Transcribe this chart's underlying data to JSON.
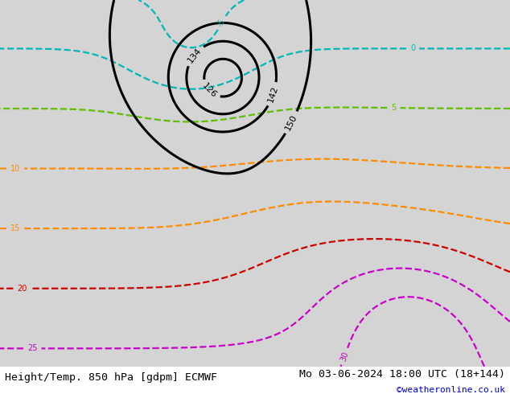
{
  "title_left": "Height/Temp. 850 hPa [gdpm] ECMWF",
  "title_right": "Mo 03-06-2024 18:00 UTC (18+144)",
  "copyright": "©weatheronline.co.uk",
  "figsize": [
    6.34,
    4.9
  ],
  "dpi": 100,
  "font_size_title": 9.5,
  "font_size_copyright": 8,
  "title_color": "black",
  "copyright_color": "#0000cc",
  "bg_color": "#d8d8d8",
  "land_green": "#c8e8a0",
  "land_gray": "#b8b8b8",
  "border_color": "#909090",
  "geo_color": "black",
  "geo_lw": 2.2,
  "temp_orange_color": "#ff8c00",
  "temp_orange_lw": 1.6,
  "temp_red_color": "#cc0000",
  "temp_red_lw": 1.6,
  "temp_magenta_color": "#cc00cc",
  "temp_magenta_lw": 1.6,
  "temp_cyan_color": "#00b8b8",
  "temp_cyan_lw": 1.6,
  "temp_green_color": "#60c000",
  "temp_green_lw": 1.6,
  "extent_lon_min": -30,
  "extent_lon_max": 50,
  "extent_lat_min": 25,
  "extent_lat_max": 72
}
